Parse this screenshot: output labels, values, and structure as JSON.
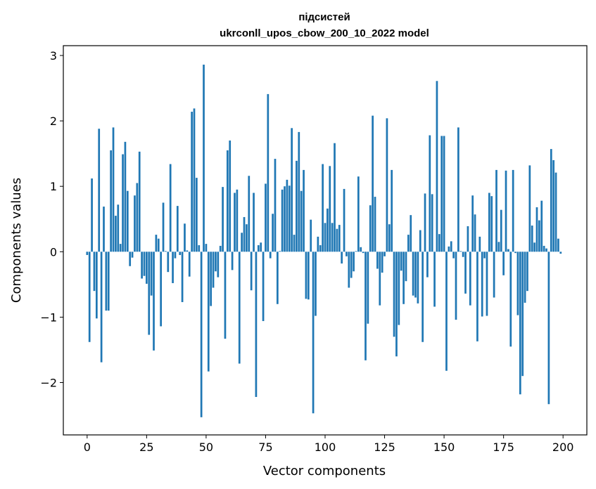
{
  "chart_data": {
    "type": "bar",
    "title": "підсистей",
    "subtitle": "ukrconll_upos_cbow_200_10_2022 model",
    "xlabel": "Vector components",
    "ylabel": "Components values",
    "xlim": [
      -10,
      210
    ],
    "ylim": [
      -2.8,
      3.15
    ],
    "xticks": [
      0,
      25,
      50,
      75,
      100,
      125,
      150,
      175,
      200
    ],
    "yticks": [
      -2,
      -1,
      0,
      1,
      2,
      3
    ],
    "ytick_labels": [
      "−2",
      "−1",
      "0",
      "1",
      "2",
      "3"
    ],
    "grid": false,
    "bar_color": "#1f77b4",
    "values": [
      -0.05,
      -1.38,
      1.12,
      -0.6,
      -1.02,
      1.88,
      -1.69,
      0.69,
      -0.9,
      -0.9,
      1.55,
      1.9,
      0.55,
      0.72,
      0.12,
      1.49,
      1.68,
      0.93,
      -0.22,
      -0.09,
      0.86,
      1.05,
      1.53,
      -0.41,
      -0.37,
      -0.49,
      -1.27,
      -0.67,
      -1.51,
      0.26,
      0.2,
      -1.14,
      0.75,
      0.01,
      -0.31,
      1.34,
      -0.48,
      -0.1,
      0.7,
      -0.05,
      -0.77,
      0.43,
      0.02,
      -0.38,
      2.14,
      2.19,
      1.13,
      0.1,
      -2.53,
      2.86,
      0.12,
      -1.83,
      -0.83,
      -0.55,
      -0.3,
      -0.39,
      0.09,
      0.99,
      -1.33,
      1.55,
      1.7,
      -0.28,
      0.9,
      0.95,
      -1.71,
      0.29,
      0.53,
      0.42,
      1.16,
      -0.59,
      0.9,
      -2.22,
      0.1,
      0.14,
      -1.06,
      1.04,
      2.41,
      -0.1,
      0.58,
      1.42,
      -0.8,
      0.01,
      0.95,
      1.0,
      1.1,
      1.01,
      1.89,
      0.26,
      1.39,
      1.83,
      0.93,
      1.25,
      -0.72,
      -0.73,
      0.49,
      -2.47,
      -0.98,
      0.23,
      0.1,
      1.34,
      0.44,
      0.66,
      1.31,
      0.44,
      1.66,
      0.35,
      0.41,
      -0.18,
      0.96,
      -0.07,
      -0.55,
      -0.4,
      -0.3,
      0.01,
      1.15,
      0.07,
      -0.02,
      -1.66,
      -1.1,
      0.71,
      2.08,
      0.84,
      -0.26,
      -0.82,
      -0.32,
      -0.07,
      2.04,
      0.42,
      1.25,
      -1.3,
      -1.6,
      -1.12,
      -0.29,
      -0.8,
      -0.45,
      0.26,
      0.56,
      -0.67,
      -0.7,
      -0.79,
      0.33,
      -1.38,
      0.89,
      -0.39,
      1.78,
      0.88,
      -0.84,
      2.61,
      0.27,
      1.77,
      1.77,
      -1.82,
      0.08,
      0.16,
      -0.1,
      -1.04,
      1.9,
      0.01,
      -0.08,
      -0.64,
      0.39,
      -0.82,
      0.86,
      0.57,
      -1.37,
      0.23,
      -0.99,
      -0.1,
      -0.98,
      0.9,
      0.85,
      -0.7,
      1.25,
      0.15,
      0.64,
      -0.36,
      1.24,
      0.04,
      -1.45,
      1.25,
      -0.02,
      -0.97,
      -2.18,
      -1.9,
      -0.78,
      -0.6,
      1.32,
      0.4,
      0.14,
      0.68,
      0.48,
      0.78,
      0.09,
      0.05,
      -2.33,
      1.57,
      1.4,
      1.21,
      0.2,
      -0.03
    ]
  }
}
